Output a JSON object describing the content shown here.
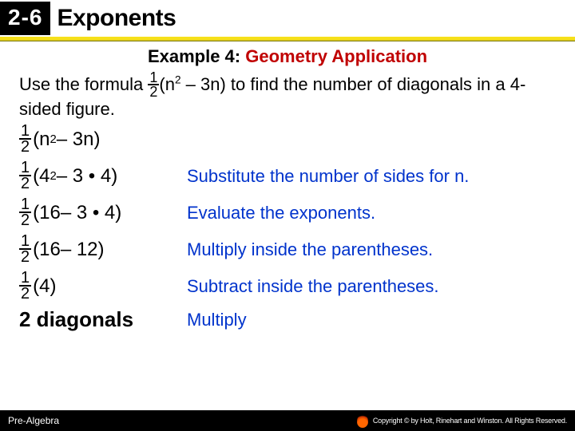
{
  "header": {
    "lesson_number": "2-6",
    "lesson_title": "Exponents"
  },
  "example": {
    "label": "Example 4:",
    "title": "Geometry Application"
  },
  "intro": {
    "prefix": "Use the formula ",
    "frac_num": "1",
    "frac_den": "2",
    "after_frac": "(n",
    "exp1": "2",
    "after_exp": " – 3n) to find the number of diagonals in a 4-sided figure."
  },
  "steps": [
    {
      "num": "1",
      "den": "2",
      "expr_a": "(n",
      "sup": "2",
      "expr_b": " – 3n)",
      "explain": ""
    },
    {
      "num": "1",
      "den": "2",
      "expr_a": "(4",
      "sup": "2",
      "expr_b": " – 3 • 4)",
      "explain": "Substitute the number of sides for n."
    },
    {
      "num": "1",
      "den": "2",
      "expr_a": "(16",
      "sup": "",
      "expr_b": " – 3 • 4)",
      "explain": "Evaluate the exponents."
    },
    {
      "num": "1",
      "den": "2",
      "expr_a": "(16",
      "sup": "",
      "expr_b": " – 12)",
      "explain": "Multiply inside the parentheses."
    },
    {
      "num": "1",
      "den": "2",
      "expr_a": "(4)",
      "sup": "",
      "expr_b": "",
      "explain": "Subtract inside the parentheses."
    }
  ],
  "final": {
    "expr": "2 diagonals",
    "explain": "Multiply"
  },
  "footer": {
    "left": "Pre-Algebra",
    "copyright": "Copyright © by Holt, Rinehart and Winston. All Rights Reserved."
  },
  "colors": {
    "accent_yellow": "#f6e01a",
    "red": "#c00000",
    "blue": "#0033cc",
    "black": "#000000",
    "white": "#ffffff"
  }
}
